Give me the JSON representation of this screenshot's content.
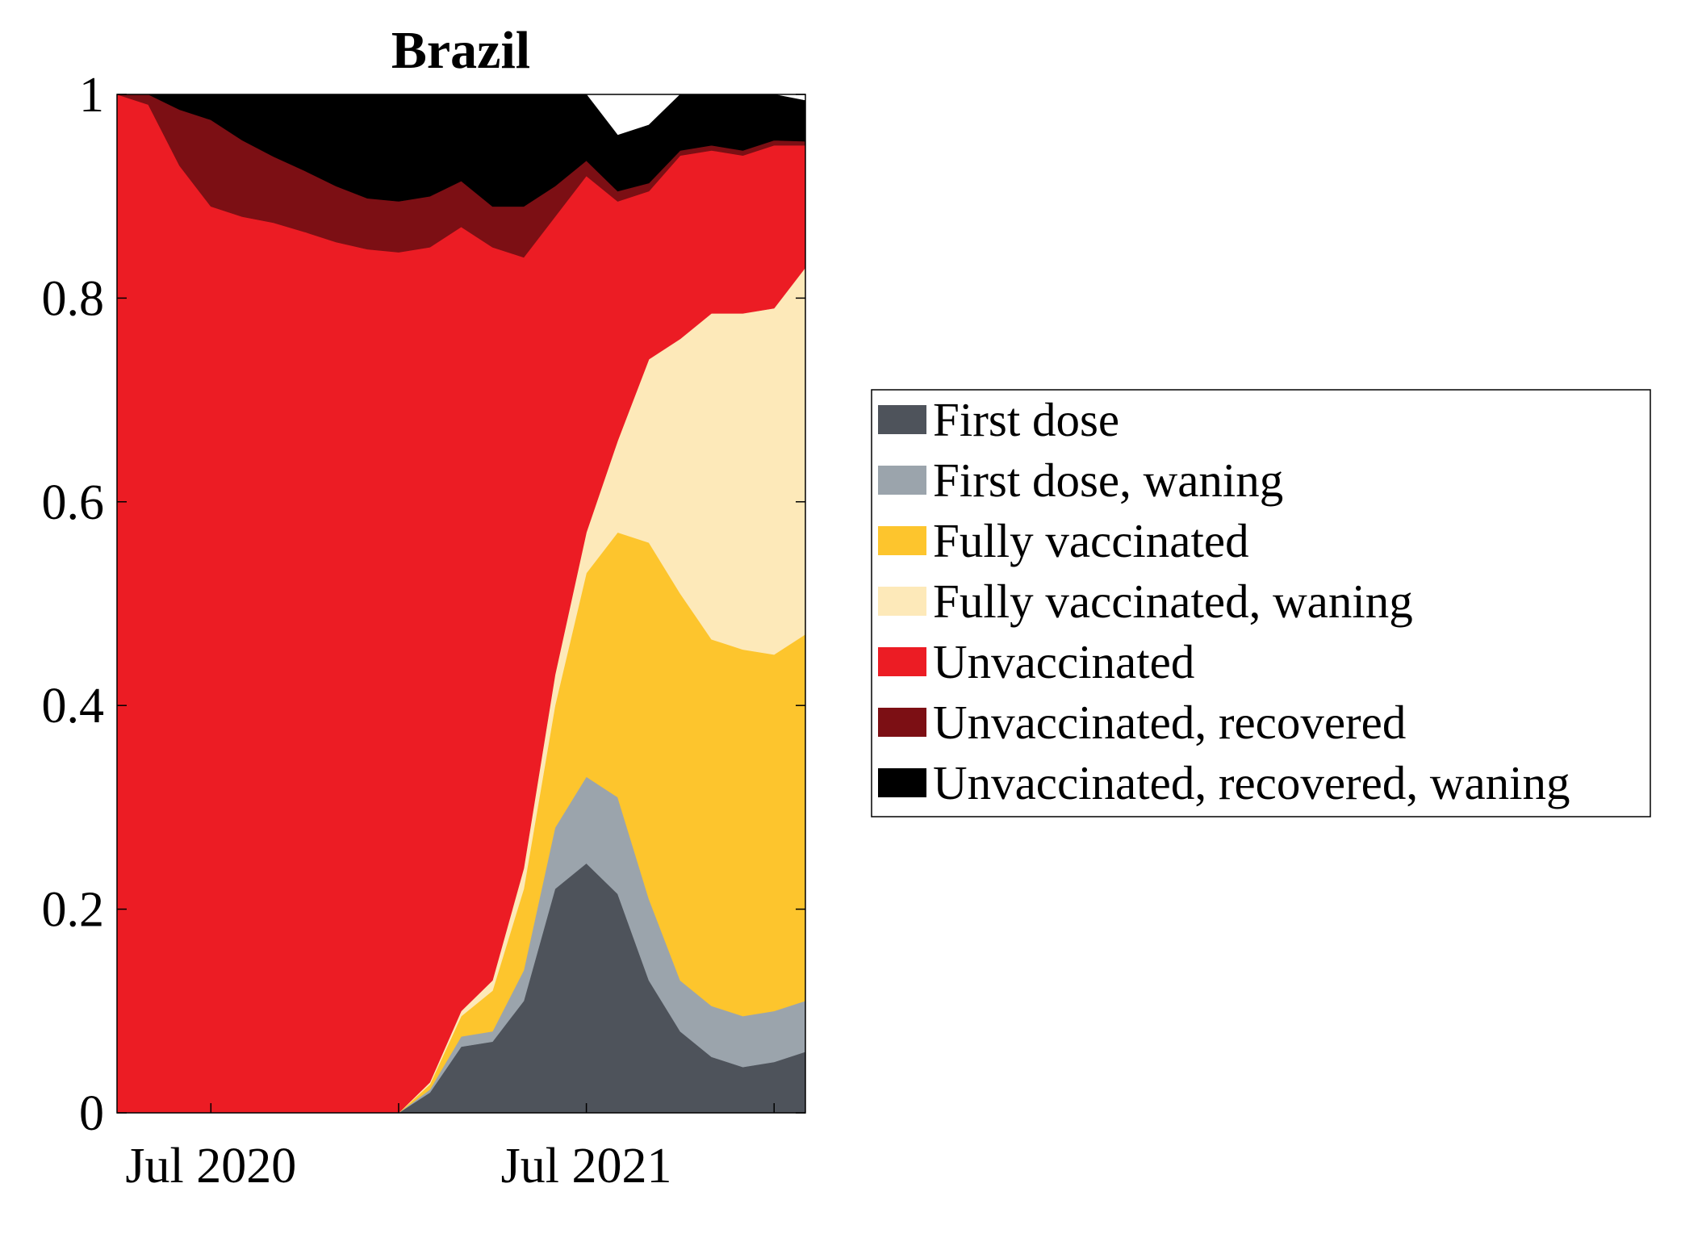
{
  "chart_data": {
    "type": "area",
    "stacked": true,
    "title": "Brazil",
    "xlabel": "",
    "ylabel": "",
    "ylim": [
      0,
      1
    ],
    "y_ticks": [
      "0",
      "0.2",
      "0.4",
      "0.6",
      "0.8",
      "1"
    ],
    "x_ticks": [
      "Jul 2020",
      "Jul 2021"
    ],
    "x": [
      "2020-04",
      "2020-05",
      "2020-06",
      "2020-07",
      "2020-08",
      "2020-09",
      "2020-10",
      "2020-11",
      "2020-12",
      "2021-01",
      "2021-02",
      "2021-03",
      "2021-04",
      "2021-05",
      "2021-06",
      "2021-07",
      "2021-08",
      "2021-09",
      "2021-10",
      "2021-11",
      "2021-12",
      "2022-01",
      "2022-02"
    ],
    "series": [
      {
        "name": "First dose",
        "color": "#4e535b",
        "values": [
          0,
          0,
          0,
          0,
          0,
          0,
          0,
          0,
          0,
          0,
          0.02,
          0.065,
          0.07,
          0.11,
          0.22,
          0.245,
          0.215,
          0.13,
          0.08,
          0.055,
          0.045,
          0.05,
          0.06
        ]
      },
      {
        "name": "First dose, waning",
        "color": "#9ba4ac",
        "values": [
          0,
          0,
          0,
          0,
          0,
          0,
          0,
          0,
          0,
          0,
          0.003,
          0.01,
          0.01,
          0.03,
          0.06,
          0.085,
          0.095,
          0.08,
          0.05,
          0.05,
          0.05,
          0.05,
          0.05
        ]
      },
      {
        "name": "Fully vaccinated",
        "color": "#fdc52d",
        "values": [
          0,
          0,
          0,
          0,
          0,
          0,
          0,
          0,
          0,
          0,
          0.005,
          0.02,
          0.04,
          0.08,
          0.12,
          0.2,
          0.26,
          0.35,
          0.38,
          0.36,
          0.36,
          0.35,
          0.36
        ]
      },
      {
        "name": "Fully vaccinated, waning",
        "color": "#fde9b9",
        "values": [
          0,
          0,
          0,
          0,
          0,
          0,
          0,
          0,
          0,
          0,
          0.002,
          0.005,
          0.01,
          0.02,
          0.03,
          0.04,
          0.09,
          0.18,
          0.25,
          0.32,
          0.33,
          0.34,
          0.36
        ]
      },
      {
        "name": "Unvaccinated",
        "color": "#ec1c24",
        "values": [
          1,
          0.99,
          0.93,
          0.89,
          0.88,
          0.874,
          0.865,
          0.855,
          0.848,
          0.845,
          0.82,
          0.77,
          0.72,
          0.6,
          0.45,
          0.35,
          0.235,
          0.165,
          0.18,
          0.16,
          0.155,
          0.16,
          0.12
        ]
      },
      {
        "name": "Unvaccinated, recovered",
        "color": "#7c0f14",
        "values": [
          0,
          0.01,
          0.055,
          0.085,
          0.075,
          0.065,
          0.06,
          0.055,
          0.05,
          0.05,
          0.05,
          0.045,
          0.04,
          0.05,
          0.03,
          0.015,
          0.01,
          0.008,
          0.005,
          0.005,
          0.005,
          0.005,
          0.004
        ]
      },
      {
        "name": "Unvaccinated, recovered, waning",
        "color": "#000000",
        "values": [
          0,
          0,
          0.015,
          0.025,
          0.045,
          0.061,
          0.075,
          0.09,
          0.102,
          0.105,
          0.1,
          0.085,
          0.11,
          0.11,
          0.09,
          0.065,
          0.055,
          0.057,
          0.055,
          0.05,
          0.055,
          0.045,
          0.04
        ]
      }
    ]
  }
}
